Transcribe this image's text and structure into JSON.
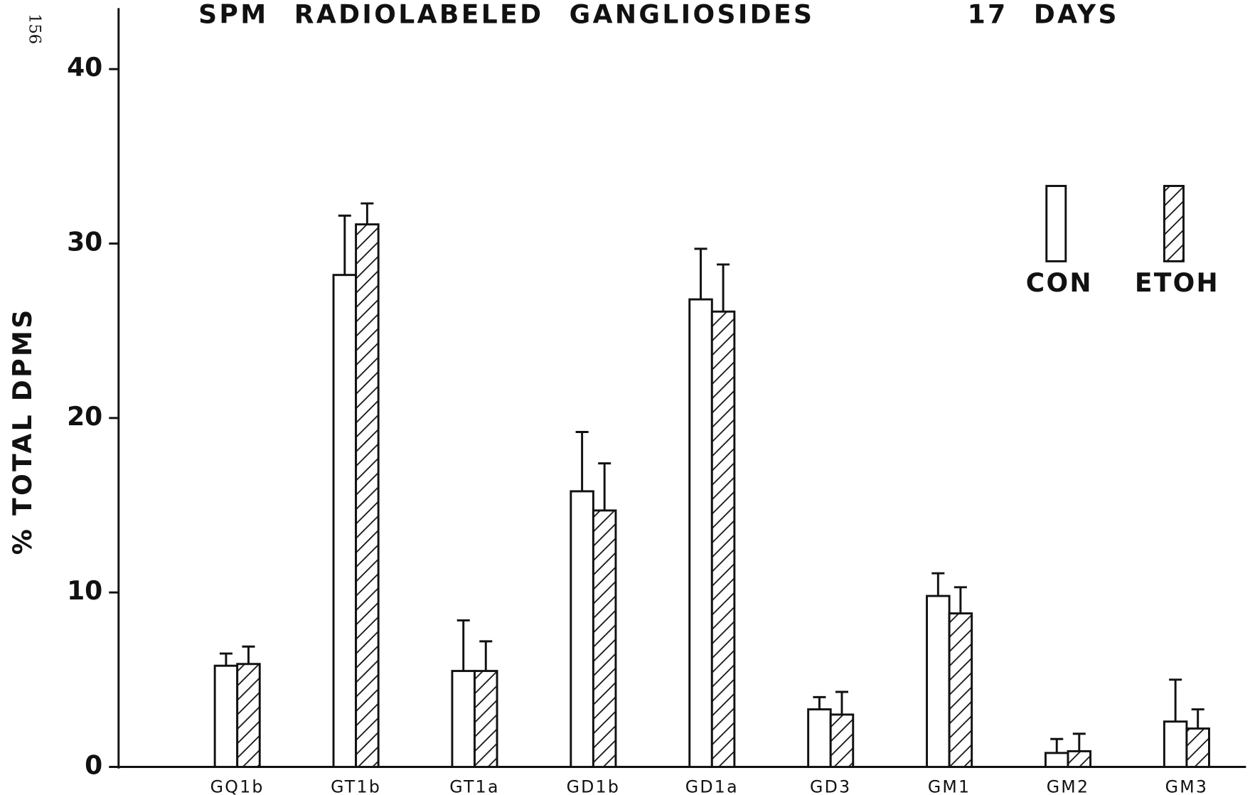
{
  "page_number": "156",
  "chart_data": {
    "type": "bar",
    "title": "SPM RADIOLABELED GANGLIOSIDES",
    "subtitle": "17 DAYS",
    "y_label": "% TOTAL DPMS",
    "categories": [
      "GQ1b",
      "GT1b",
      "GT1a",
      "GD1b",
      "GD1a",
      "GD3",
      "GM1",
      "GM2",
      "GM3"
    ],
    "series": [
      {
        "name": "CON",
        "color": "#ffffff",
        "hatch": false,
        "values": [
          5.8,
          28.2,
          5.5,
          15.8,
          26.8,
          3.3,
          9.8,
          0.8,
          2.6
        ],
        "errors": [
          0.7,
          3.4,
          2.9,
          3.4,
          2.9,
          0.7,
          1.3,
          0.8,
          2.4
        ]
      },
      {
        "name": "ETOH",
        "color": "#ffffff",
        "hatch": true,
        "values": [
          5.9,
          31.1,
          5.5,
          14.7,
          26.1,
          3.0,
          8.8,
          0.9,
          2.2
        ],
        "errors": [
          1.0,
          1.2,
          1.7,
          2.7,
          2.7,
          1.3,
          1.5,
          1.0,
          1.1
        ]
      }
    ],
    "ylim": [
      0,
      43.5
    ],
    "yticks": [
      0,
      10,
      20,
      30,
      40
    ],
    "legend_position": "upper right",
    "grid": false
  }
}
